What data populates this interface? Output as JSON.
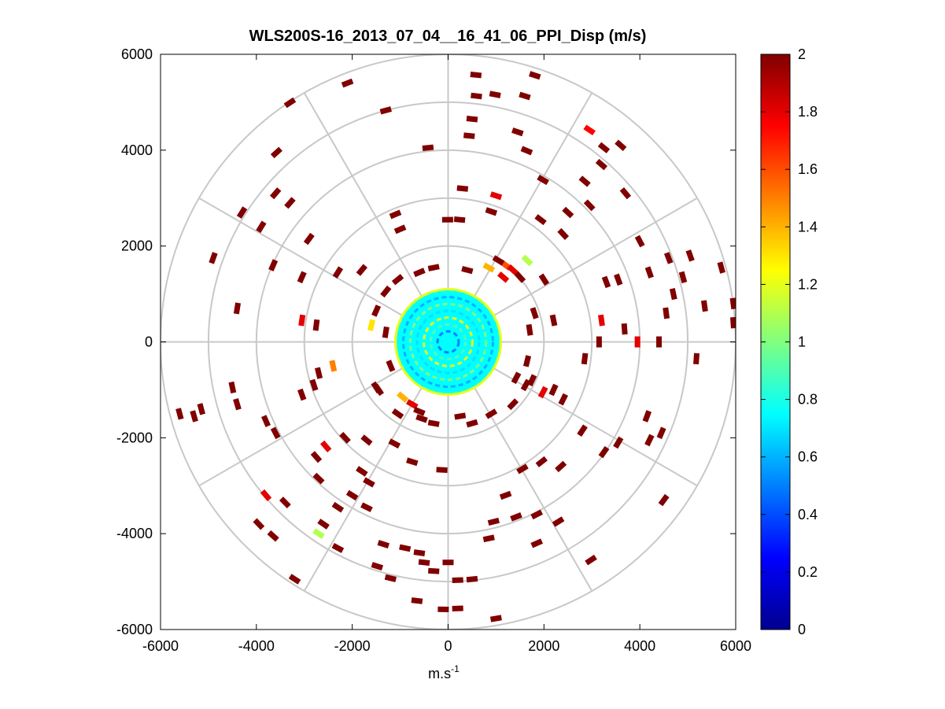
{
  "chart_data": {
    "type": "polar-scatter",
    "title": "WLS200S-16_2013_07_04__16_41_06_PPI_Disp (m/s)",
    "xlabel_main": "m.s",
    "xlabel_sup": "-1",
    "ylabel": "",
    "xlim": [
      -6000,
      6000
    ],
    "ylim": [
      -6000,
      6000
    ],
    "xticks": [
      -6000,
      -4000,
      -2000,
      0,
      2000,
      4000,
      6000
    ],
    "yticks": [
      -6000,
      -4000,
      -2000,
      0,
      2000,
      4000,
      6000
    ],
    "xtick_labels": [
      "-6000",
      "-4000",
      "-2000",
      "0",
      "2000",
      "4000",
      "6000"
    ],
    "ytick_labels": [
      "-6000",
      "-4000",
      "-2000",
      "0",
      "2000",
      "4000",
      "6000"
    ],
    "polar_grid": {
      "rings": [
        1000,
        2000,
        3000,
        4000,
        5000,
        6000
      ],
      "spoke_angles_deg": [
        0,
        30,
        60,
        90,
        120,
        150,
        180,
        210,
        240,
        270,
        300,
        330
      ]
    },
    "colorbar": {
      "colormap": "jet",
      "range": [
        0,
        2
      ],
      "ticks": [
        0,
        0.2,
        0.4,
        0.6,
        0.8,
        1,
        1.2,
        1.4,
        1.6,
        1.8,
        2
      ],
      "tick_labels": [
        "0",
        "0.2",
        "0.4",
        "0.6",
        "0.8",
        "1",
        "1.2",
        "1.4",
        "1.6",
        "1.8",
        "2"
      ]
    },
    "center_disc": {
      "center": [
        0,
        0
      ],
      "radius": 1100,
      "typical_value": 0.75,
      "value_range": [
        0.5,
        1.2
      ],
      "description_of_values": "dense mixed cyan/green/yellow cells, mostly 0.6-1.0 m/s"
    },
    "gates": [
      {
        "x": 580,
        "y": 5570,
        "v": 2
      },
      {
        "x": 590,
        "y": 5130,
        "v": 2
      },
      {
        "x": 980,
        "y": 5160,
        "v": 2
      },
      {
        "x": 1810,
        "y": 5560,
        "v": 2
      },
      {
        "x": 1600,
        "y": 5130,
        "v": 2
      },
      {
        "x": -2100,
        "y": 5400,
        "v": 2
      },
      {
        "x": -3300,
        "y": 4990,
        "v": 2
      },
      {
        "x": -1300,
        "y": 4830,
        "v": 2
      },
      {
        "x": -3580,
        "y": 3950,
        "v": 2
      },
      {
        "x": 500,
        "y": 4650,
        "v": 2
      },
      {
        "x": 440,
        "y": 4300,
        "v": 2
      },
      {
        "x": 1450,
        "y": 4380,
        "v": 2
      },
      {
        "x": 1640,
        "y": 3990,
        "v": 2
      },
      {
        "x": -420,
        "y": 4050,
        "v": 2
      },
      {
        "x": 2950,
        "y": 4420,
        "v": 1.75
      },
      {
        "x": 3250,
        "y": 4050,
        "v": 2
      },
      {
        "x": 3600,
        "y": 4100,
        "v": 2
      },
      {
        "x": 3200,
        "y": 3700,
        "v": 2
      },
      {
        "x": 1980,
        "y": 3380,
        "v": 2
      },
      {
        "x": 2850,
        "y": 3350,
        "v": 2
      },
      {
        "x": 3700,
        "y": 3100,
        "v": 2
      },
      {
        "x": 1000,
        "y": 3050,
        "v": 1.8
      },
      {
        "x": 300,
        "y": 3200,
        "v": 2
      },
      {
        "x": -3600,
        "y": 3100,
        "v": 2
      },
      {
        "x": -3300,
        "y": 2900,
        "v": 2
      },
      {
        "x": -4300,
        "y": 2700,
        "v": 2
      },
      {
        "x": -1100,
        "y": 2660,
        "v": 2
      },
      {
        "x": -10,
        "y": 2550,
        "v": 2
      },
      {
        "x": 240,
        "y": 2550,
        "v": 2
      },
      {
        "x": 900,
        "y": 2720,
        "v": 2
      },
      {
        "x": 1930,
        "y": 2550,
        "v": 2
      },
      {
        "x": 2500,
        "y": 2700,
        "v": 2
      },
      {
        "x": 2950,
        "y": 2850,
        "v": 2
      },
      {
        "x": 2400,
        "y": 2250,
        "v": 2
      },
      {
        "x": -1000,
        "y": 2350,
        "v": 2
      },
      {
        "x": -3900,
        "y": 2400,
        "v": 2
      },
      {
        "x": -2900,
        "y": 2150,
        "v": 2
      },
      {
        "x": -4900,
        "y": 1750,
        "v": 2
      },
      {
        "x": 4000,
        "y": 2100,
        "v": 2
      },
      {
        "x": 5050,
        "y": 1800,
        "v": 2
      },
      {
        "x": 4600,
        "y": 1750,
        "v": 2
      },
      {
        "x": 5700,
        "y": 1550,
        "v": 2
      },
      {
        "x": 4200,
        "y": 1450,
        "v": 2
      },
      {
        "x": 4900,
        "y": 1350,
        "v": 2
      },
      {
        "x": -2300,
        "y": 1450,
        "v": 2
      },
      {
        "x": 1650,
        "y": 1700,
        "v": 1.1
      },
      {
        "x": 2000,
        "y": 1300,
        "v": 2
      },
      {
        "x": 3300,
        "y": 1250,
        "v": 2
      },
      {
        "x": 3550,
        "y": 1300,
        "v": 2
      },
      {
        "x": 4700,
        "y": 1000,
        "v": 2
      },
      {
        "x": 5350,
        "y": 750,
        "v": 2
      },
      {
        "x": 5950,
        "y": 800,
        "v": 2
      },
      {
        "x": 5950,
        "y": 400,
        "v": 2
      },
      {
        "x": 4550,
        "y": 600,
        "v": 2
      },
      {
        "x": 3200,
        "y": 450,
        "v": 1.8
      },
      {
        "x": 2200,
        "y": 450,
        "v": 2
      },
      {
        "x": 3680,
        "y": 270,
        "v": 2
      },
      {
        "x": 3950,
        "y": 0,
        "v": 1.8
      },
      {
        "x": 4400,
        "y": 0,
        "v": 2
      },
      {
        "x": 3150,
        "y": 0,
        "v": 2
      },
      {
        "x": 5180,
        "y": -350,
        "v": 2
      },
      {
        "x": 2850,
        "y": -350,
        "v": 2
      },
      {
        "x": -3050,
        "y": 450,
        "v": 1.8
      },
      {
        "x": -2400,
        "y": -500,
        "v": 1.5
      },
      {
        "x": -2800,
        "y": -900,
        "v": 2
      },
      {
        "x": -2700,
        "y": -650,
        "v": 2
      },
      {
        "x": -4500,
        "y": -950,
        "v": 2
      },
      {
        "x": -5300,
        "y": -1550,
        "v": 2
      },
      {
        "x": -5600,
        "y": -1500,
        "v": 2
      },
      {
        "x": -3800,
        "y": -1650,
        "v": 2
      },
      {
        "x": -3600,
        "y": -1900,
        "v": 2
      },
      {
        "x": -2550,
        "y": -2180,
        "v": 1.8
      },
      {
        "x": -2750,
        "y": -2400,
        "v": 2
      },
      {
        "x": -2150,
        "y": -2000,
        "v": 2
      },
      {
        "x": -1700,
        "y": -2050,
        "v": 2
      },
      {
        "x": -1120,
        "y": -2120,
        "v": 2
      },
      {
        "x": -750,
        "y": -2500,
        "v": 2
      },
      {
        "x": -1800,
        "y": -2700,
        "v": 2
      },
      {
        "x": -1650,
        "y": -2930,
        "v": 2
      },
      {
        "x": -2000,
        "y": -3200,
        "v": 2
      },
      {
        "x": -2700,
        "y": -2850,
        "v": 2
      },
      {
        "x": -3800,
        "y": -3200,
        "v": 1.8
      },
      {
        "x": -3400,
        "y": -3350,
        "v": 2
      },
      {
        "x": -1700,
        "y": -3450,
        "v": 2
      },
      {
        "x": -2300,
        "y": -3450,
        "v": 2
      },
      {
        "x": -2600,
        "y": -3800,
        "v": 2
      },
      {
        "x": -3950,
        "y": -3800,
        "v": 2
      },
      {
        "x": -3650,
        "y": -4050,
        "v": 2
      },
      {
        "x": -2700,
        "y": -4000,
        "v": 1.1
      },
      {
        "x": -2300,
        "y": -4300,
        "v": 2
      },
      {
        "x": -1480,
        "y": -4680,
        "v": 2
      },
      {
        "x": -1350,
        "y": -4220,
        "v": 2
      },
      {
        "x": -900,
        "y": -4300,
        "v": 2
      },
      {
        "x": -600,
        "y": -4400,
        "v": 2
      },
      {
        "x": -500,
        "y": -4600,
        "v": 2
      },
      {
        "x": -1200,
        "y": -4930,
        "v": 2
      },
      {
        "x": -300,
        "y": -4780,
        "v": 2
      },
      {
        "x": 200,
        "y": -4970,
        "v": 2
      },
      {
        "x": 500,
        "y": -4950,
        "v": 2
      },
      {
        "x": -650,
        "y": -5400,
        "v": 2
      },
      {
        "x": -100,
        "y": -5580,
        "v": 2
      },
      {
        "x": 200,
        "y": -5560,
        "v": 2
      },
      {
        "x": 1000,
        "y": -5770,
        "v": 2
      },
      {
        "x": -3200,
        "y": -4950,
        "v": 2
      },
      {
        "x": 0,
        "y": -4600,
        "v": 2
      },
      {
        "x": 950,
        "y": -3750,
        "v": 2
      },
      {
        "x": 1420,
        "y": -3650,
        "v": 2
      },
      {
        "x": 1850,
        "y": -3600,
        "v": 2
      },
      {
        "x": 2300,
        "y": -3750,
        "v": 2
      },
      {
        "x": 850,
        "y": -4100,
        "v": 2
      },
      {
        "x": 1850,
        "y": -4200,
        "v": 2
      },
      {
        "x": 2980,
        "y": -4550,
        "v": 2
      },
      {
        "x": 4500,
        "y": -3300,
        "v": 2
      },
      {
        "x": 3550,
        "y": -2100,
        "v": 2
      },
      {
        "x": 4200,
        "y": -2050,
        "v": 2
      },
      {
        "x": 4450,
        "y": -1900,
        "v": 2
      },
      {
        "x": 4150,
        "y": -1550,
        "v": 2
      },
      {
        "x": 2400,
        "y": -1200,
        "v": 2
      },
      {
        "x": 2200,
        "y": -1000,
        "v": 2
      },
      {
        "x": 2800,
        "y": -1850,
        "v": 2
      },
      {
        "x": 3250,
        "y": -2300,
        "v": 2
      },
      {
        "x": 1950,
        "y": -2500,
        "v": 2
      },
      {
        "x": 2350,
        "y": -2600,
        "v": 2
      },
      {
        "x": 1550,
        "y": -2650,
        "v": 2
      },
      {
        "x": 1200,
        "y": -3200,
        "v": 2
      },
      {
        "x": -130,
        "y": -2670,
        "v": 2
      },
      {
        "x": 1420,
        "y": -750,
        "v": 2
      },
      {
        "x": 1980,
        "y": -1050,
        "v": 1.8
      },
      {
        "x": 1620,
        "y": -900,
        "v": 2
      },
      {
        "x": -2750,
        "y": 350,
        "v": 2
      },
      {
        "x": -4400,
        "y": 700,
        "v": 2
      },
      {
        "x": -3050,
        "y": -1100,
        "v": 2
      },
      {
        "x": -4400,
        "y": -1300,
        "v": 2
      },
      {
        "x": -5150,
        "y": -1400,
        "v": 2
      },
      {
        "x": -1300,
        "y": 200,
        "v": 2
      },
      {
        "x": -1800,
        "y": 1500,
        "v": 2
      },
      {
        "x": -3650,
        "y": 1600,
        "v": 2
      },
      {
        "x": -3050,
        "y": 1350,
        "v": 2
      },
      {
        "x": -1450,
        "y": -1000,
        "v": 2
      },
      {
        "x": -1050,
        "y": -1500,
        "v": 2
      },
      {
        "x": -550,
        "y": -1600,
        "v": 2
      },
      {
        "x": -300,
        "y": -1700,
        "v": 2
      },
      {
        "x": 500,
        "y": -1700,
        "v": 2
      },
      {
        "x": 900,
        "y": -1500,
        "v": 2
      },
      {
        "x": 1350,
        "y": -1300,
        "v": 2
      },
      {
        "x": 1750,
        "y": -800,
        "v": 2
      },
      {
        "x": 1800,
        "y": 600,
        "v": 2
      },
      {
        "x": 1700,
        "y": 250,
        "v": 2
      },
      {
        "x": 1200,
        "y": 1600,
        "v": 1.6
      },
      {
        "x": 1350,
        "y": 1500,
        "v": 1.8
      },
      {
        "x": 1500,
        "y": 1350,
        "v": 2
      },
      {
        "x": 1050,
        "y": 1700,
        "v": 2
      },
      {
        "x": 850,
        "y": 1550,
        "v": 1.4
      },
      {
        "x": 400,
        "y": 1500,
        "v": 2
      },
      {
        "x": 1150,
        "y": 1350,
        "v": 1.8
      },
      {
        "x": -300,
        "y": 1550,
        "v": 2
      },
      {
        "x": -600,
        "y": 1450,
        "v": 2
      },
      {
        "x": -1050,
        "y": 1300,
        "v": 2
      },
      {
        "x": -1300,
        "y": 1050,
        "v": 2
      },
      {
        "x": -1500,
        "y": 650,
        "v": 2
      },
      {
        "x": -1600,
        "y": 350,
        "v": 1.3
      },
      {
        "x": -1200,
        "y": -500,
        "v": 2
      },
      {
        "x": -1500,
        "y": -950,
        "v": 2
      },
      {
        "x": -950,
        "y": -1150,
        "v": 1.4
      },
      {
        "x": -750,
        "y": -1300,
        "v": 1.8
      },
      {
        "x": -600,
        "y": -1450,
        "v": 2
      },
      {
        "x": 250,
        "y": -1550,
        "v": 2
      },
      {
        "x": 1650,
        "y": -400,
        "v": 2
      }
    ]
  }
}
